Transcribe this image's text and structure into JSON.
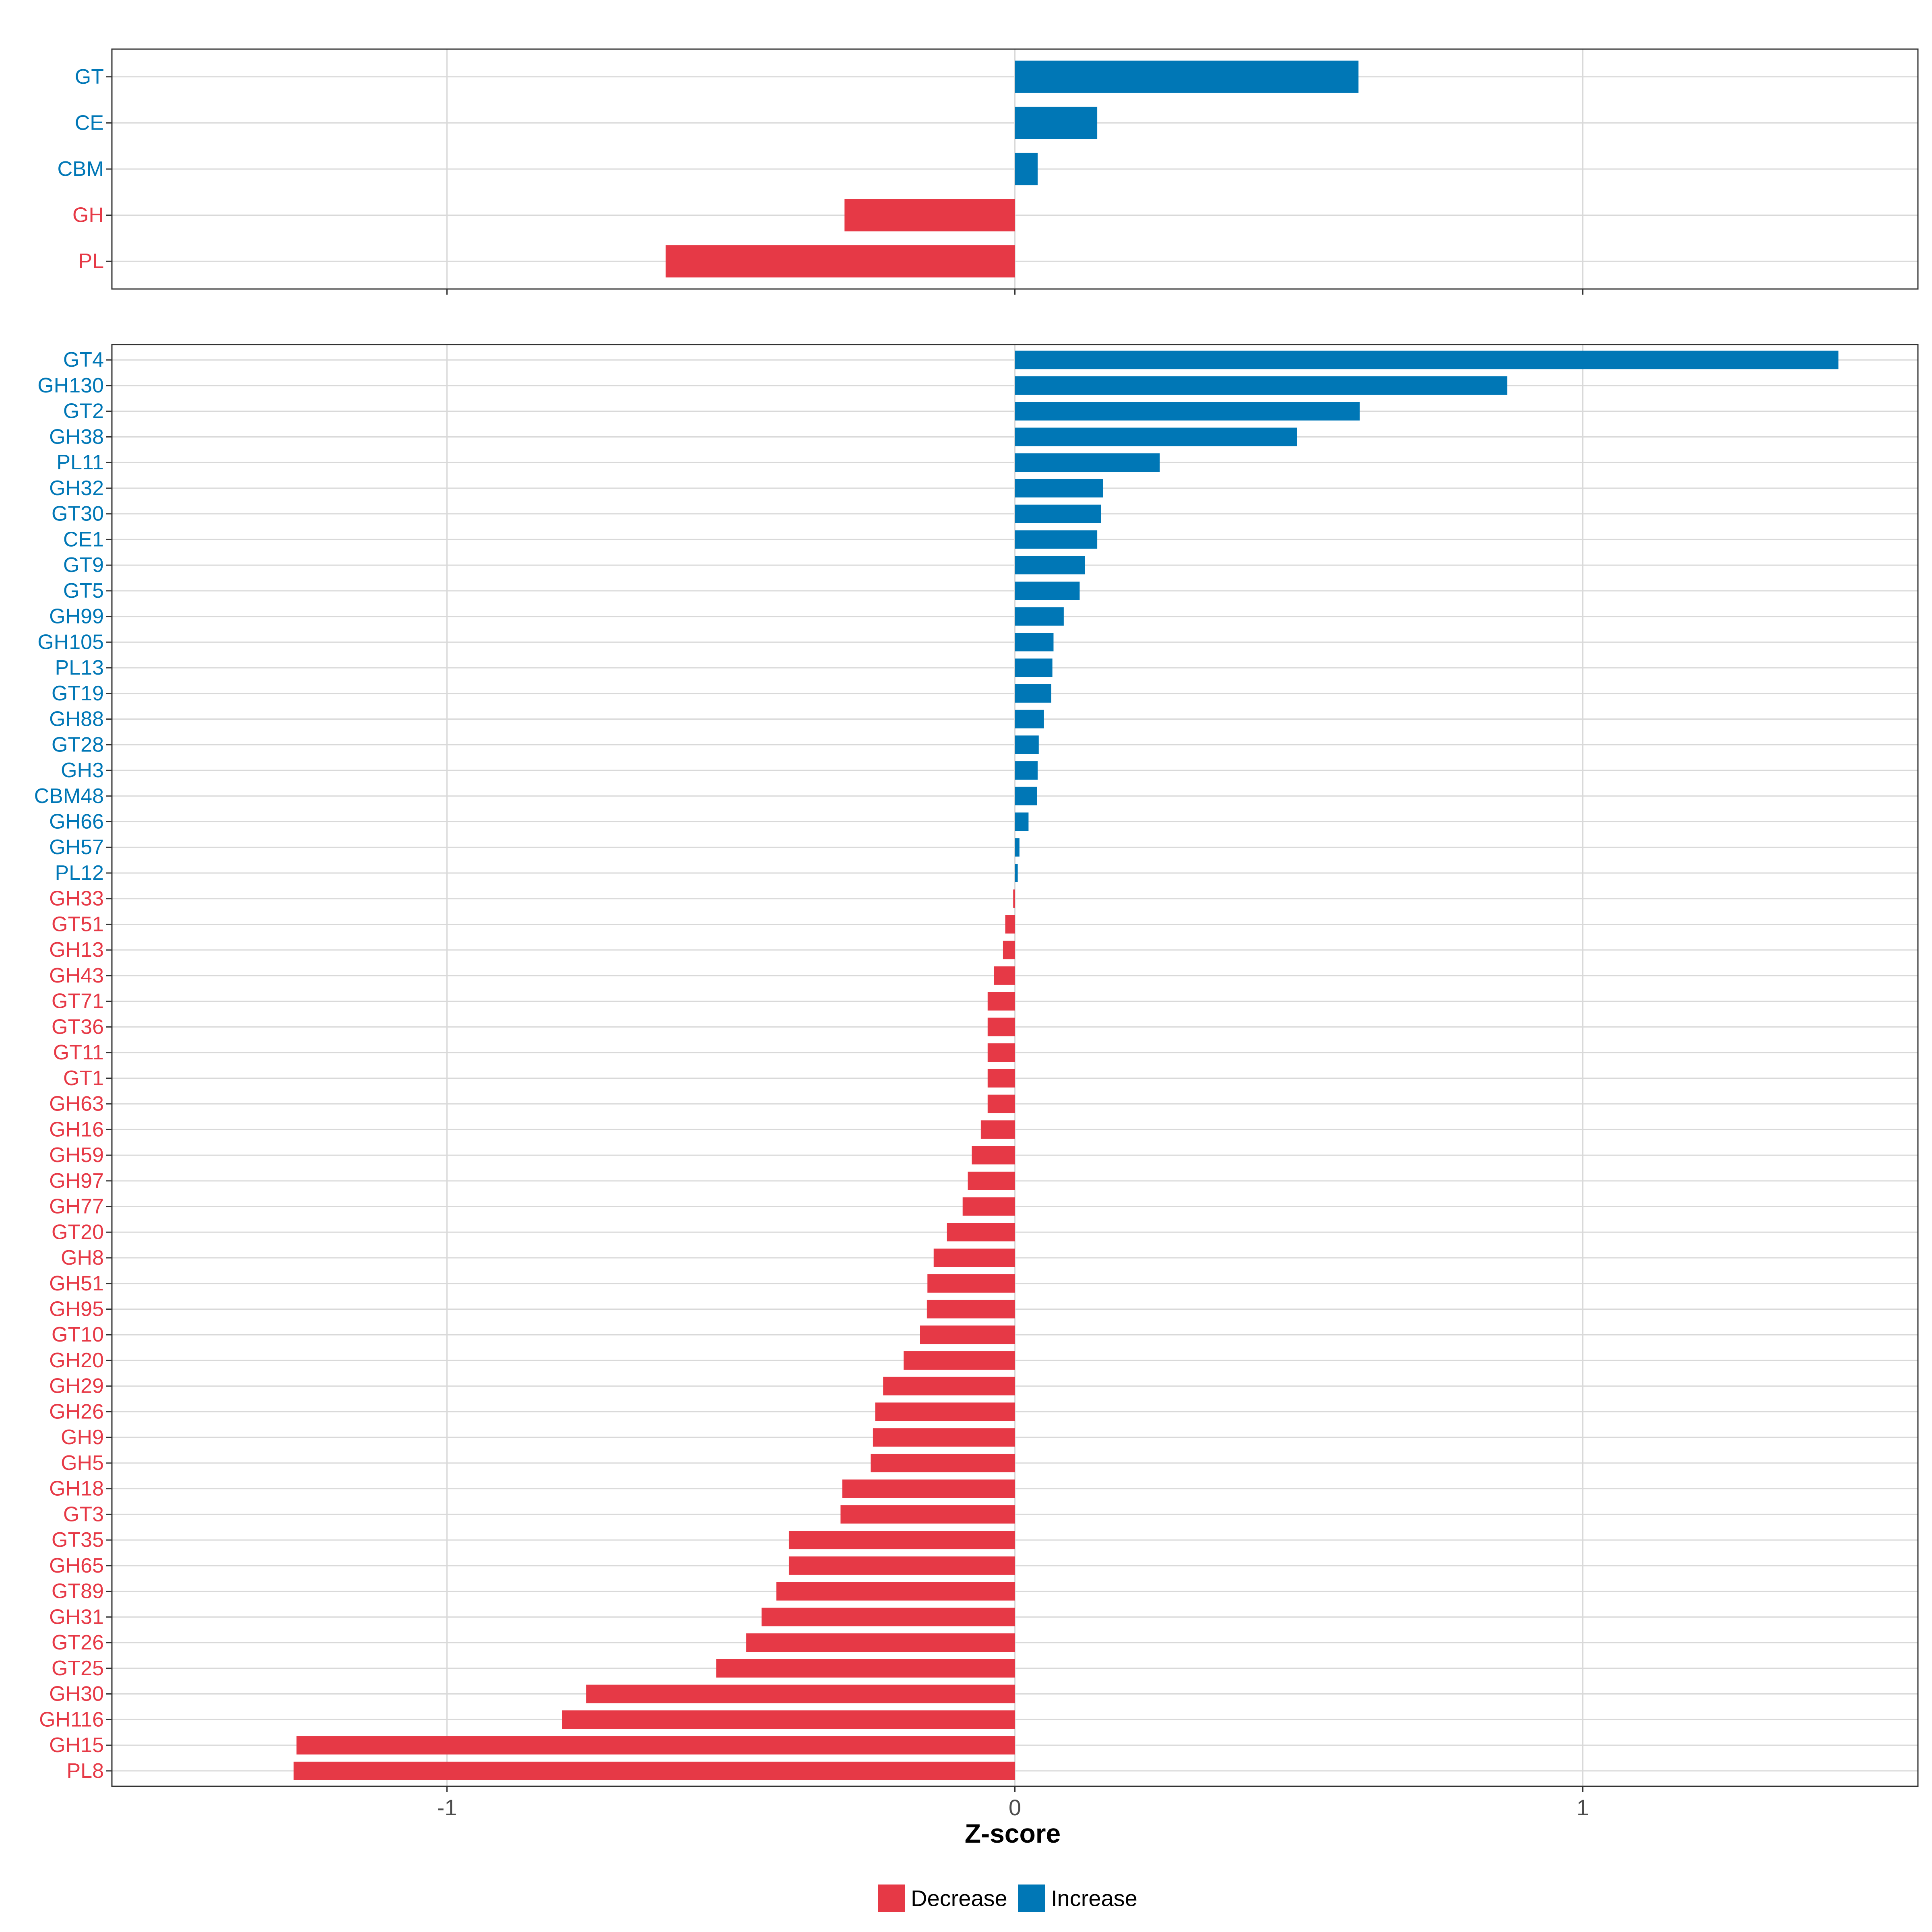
{
  "colors": {
    "decrease": "#E63946",
    "increase": "#0077B6",
    "grid": "#d9d9d9",
    "panel_border": "#333333"
  },
  "chart_data": [
    {
      "type": "bar",
      "orientation": "horizontal",
      "panel": "top",
      "categories": [
        "GT",
        "CE",
        "CBM",
        "GH",
        "PL"
      ],
      "values": [
        0.605,
        0.145,
        0.04,
        -0.3,
        -0.615
      ],
      "xlim": [
        -1.59,
        1.59
      ],
      "xticks": [
        -1,
        0,
        1
      ],
      "show_xtick_labels": false
    },
    {
      "type": "bar",
      "orientation": "horizontal",
      "panel": "bottom",
      "categories": [
        "GT4",
        "GH130",
        "GT2",
        "GH38",
        "PL11",
        "GH32",
        "GT30",
        "CE1",
        "GT9",
        "GT5",
        "GH99",
        "GH105",
        "PL13",
        "GT19",
        "GH88",
        "GT28",
        "GH3",
        "CBM48",
        "GH66",
        "GH57",
        "PL12",
        "GH33",
        "GT51",
        "GH13",
        "GH43",
        "GT71",
        "GT36",
        "GT11",
        "GT1",
        "GH63",
        "GH16",
        "GH59",
        "GH97",
        "GH77",
        "GT20",
        "GH8",
        "GH51",
        "GH95",
        "GT10",
        "GH20",
        "GH29",
        "GH26",
        "GH9",
        "GH5",
        "GH18",
        "GT3",
        "GT35",
        "GH65",
        "GT89",
        "GH31",
        "GT26",
        "GT25",
        "GH30",
        "GH116",
        "GH15",
        "PL8"
      ],
      "values": [
        1.45,
        0.867,
        0.607,
        0.497,
        0.255,
        0.155,
        0.152,
        0.145,
        0.123,
        0.114,
        0.086,
        0.068,
        0.066,
        0.064,
        0.051,
        0.042,
        0.04,
        0.039,
        0.024,
        0.008,
        0.005,
        -0.003,
        -0.017,
        -0.021,
        -0.037,
        -0.048,
        -0.048,
        -0.048,
        -0.048,
        -0.048,
        -0.06,
        -0.076,
        -0.083,
        -0.092,
        -0.12,
        -0.143,
        -0.154,
        -0.155,
        -0.167,
        -0.196,
        -0.232,
        -0.246,
        -0.25,
        -0.254,
        -0.304,
        -0.307,
        -0.398,
        -0.398,
        -0.42,
        -0.446,
        -0.473,
        -0.526,
        -0.755,
        -0.797,
        -1.265,
        -1.27
      ],
      "xlim": [
        -1.59,
        1.59
      ],
      "xticks": [
        -1,
        0,
        1
      ],
      "xtick_labels": [
        "-1",
        "0",
        "1"
      ],
      "xlabel": "Z-score"
    }
  ],
  "legend": {
    "items": [
      {
        "label": "Decrease",
        "color": "#E63946"
      },
      {
        "label": "Increase",
        "color": "#0077B6"
      }
    ]
  }
}
